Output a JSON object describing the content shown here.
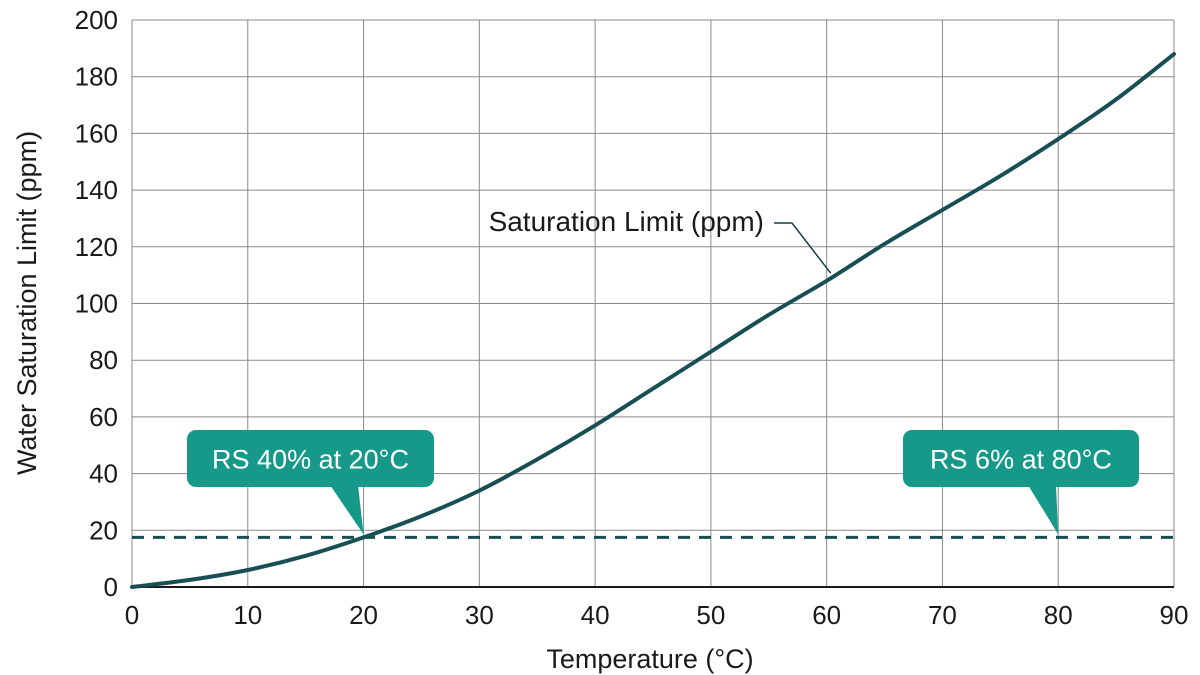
{
  "chart_data": {
    "type": "line",
    "title": "",
    "xlabel": "Temperature (°C)",
    "ylabel": "Water Saturation Limit (ppm)",
    "xlim": [
      0,
      90
    ],
    "ylim": [
      0,
      200
    ],
    "x_ticks": [
      0,
      10,
      20,
      30,
      40,
      50,
      60,
      70,
      80,
      90
    ],
    "y_ticks": [
      0,
      20,
      40,
      60,
      80,
      100,
      120,
      140,
      160,
      180,
      200
    ],
    "grid": true,
    "series": [
      {
        "name": "Saturation Limit (ppm)",
        "color": "#174f55",
        "x": [
          0,
          5,
          10,
          15,
          20,
          25,
          30,
          35,
          40,
          45,
          50,
          55,
          60,
          65,
          70,
          75,
          80,
          85,
          90
        ],
        "y": [
          0,
          2.5,
          6,
          11,
          17.5,
          25,
          34,
          45,
          57,
          70,
          83,
          96,
          108,
          121,
          133,
          145,
          158,
          172,
          188
        ]
      }
    ],
    "reference_line": {
      "y": 17.5,
      "style": "dashed",
      "color": "#174f55"
    },
    "annotations": [
      {
        "text": "Saturation Limit (ppm)",
        "points_to": {
          "x": 60,
          "y": 110
        }
      }
    ],
    "callouts": [
      {
        "text": "RS 40% at 20°C",
        "points_to": {
          "x": 20,
          "y": 17.5
        },
        "color": "#17998a"
      },
      {
        "text": "RS 6% at 80°C",
        "points_to": {
          "x": 80,
          "y": 17.5
        },
        "color": "#17998a"
      }
    ]
  }
}
